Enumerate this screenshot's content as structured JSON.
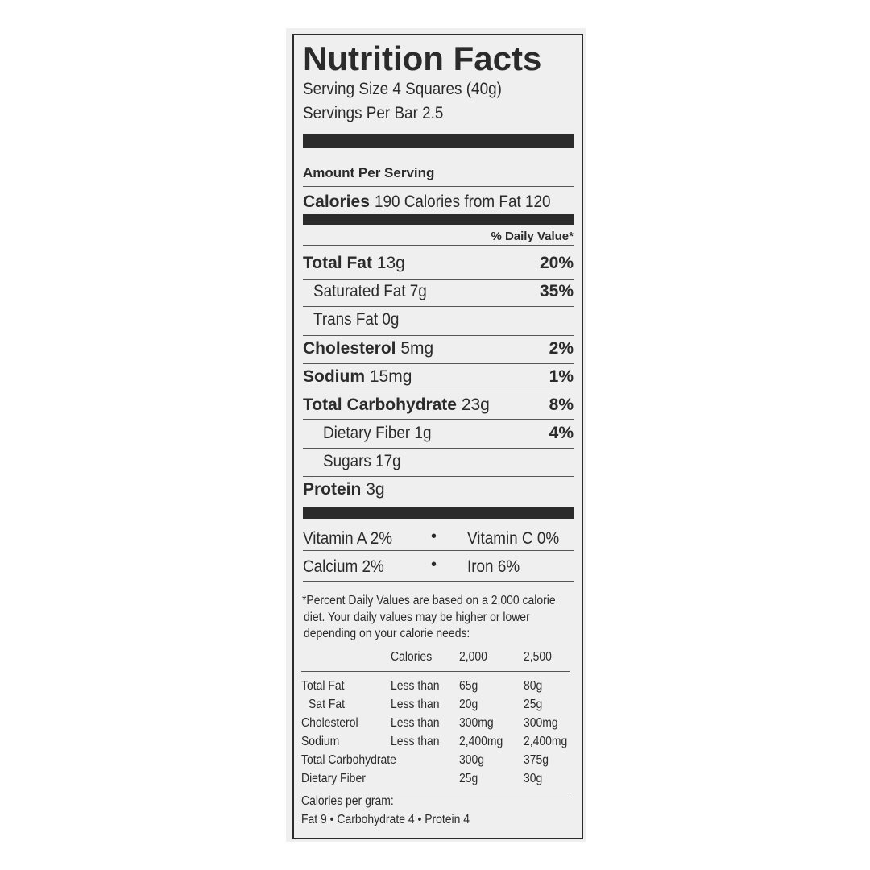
{
  "title": "Nutrition Facts",
  "serving_size": "Serving Size 4 Squares (40g)",
  "servings_per": "Servings Per Bar 2.5",
  "amount_per_serving": "Amount Per Serving",
  "calories": {
    "label": "Calories",
    "value": "190 Calories from Fat 120"
  },
  "dv_header": "% Daily Value*",
  "nutrients": [
    {
      "label": "Total Fat",
      "amount": "13g",
      "dv": "20%"
    },
    {
      "label": "Saturated Fat 7g",
      "amount": "",
      "dv": "35%"
    },
    {
      "label": "Trans Fat 0g",
      "amount": "",
      "dv": ""
    },
    {
      "label": "Cholesterol",
      "amount": "5mg",
      "dv": "2%"
    },
    {
      "label": "Sodium",
      "amount": "15mg",
      "dv": "1%"
    },
    {
      "label": "Total Carbohydrate",
      "amount": "23g",
      "dv": "8%"
    },
    {
      "label": "Dietary Fiber 1g",
      "amount": "",
      "dv": "4%"
    },
    {
      "label": "Sugars 17g",
      "amount": "",
      "dv": ""
    },
    {
      "label": "Protein",
      "amount": "3g",
      "dv": ""
    }
  ],
  "vitamins": [
    {
      "left": "Vitamin A 2%",
      "right": "Vitamin C 0%"
    },
    {
      "left": "Calcium 2%",
      "right": "Iron 6%"
    }
  ],
  "bullet": "•",
  "footnote": [
    "*Percent Daily Values are based on a 2,000 calorie",
    "diet. Your daily values may be higher or lower",
    "depending on your calorie needs:"
  ],
  "table": {
    "header": [
      "",
      "Calories",
      "2,000",
      "2,500"
    ],
    "rows": [
      [
        "Total Fat",
        "Less than",
        "65g",
        "80g"
      ],
      [
        "Sat Fat",
        "Less than",
        "20g",
        "25g"
      ],
      [
        "Cholesterol",
        "Less than",
        "300mg",
        "300mg"
      ],
      [
        "Sodium",
        "Less than",
        "2,400mg",
        "2,400mg"
      ],
      [
        "Total Carbohydrate",
        "",
        "300g",
        "375g"
      ],
      [
        "Dietary Fiber",
        "",
        "25g",
        "30g"
      ]
    ]
  },
  "calories_per_gram": "Calories per gram:",
  "calories_per_gram_values": "Fat 9 • Carbohydrate 4 • Protein 4"
}
